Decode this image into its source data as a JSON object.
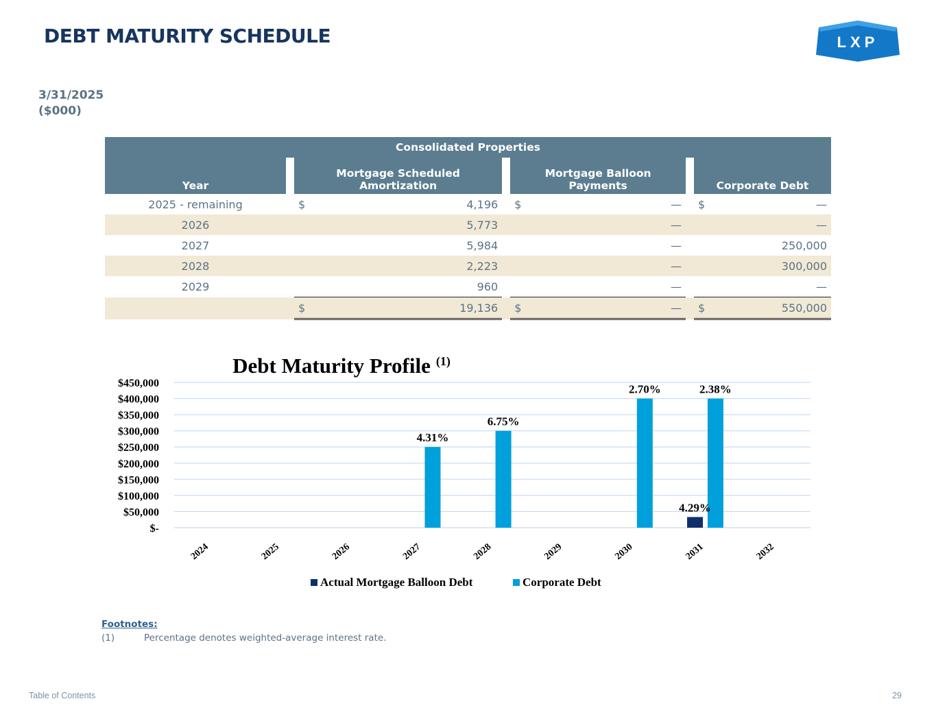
{
  "page": {
    "title": "DEBT MATURITY SCHEDULE",
    "date": "3/31/2025",
    "units": "($000)",
    "logo_text": "LXP",
    "toc_link": "Table of Contents",
    "page_number": "29"
  },
  "table": {
    "group_header": "Consolidated Properties",
    "headers": {
      "year": "Year",
      "amortization": "Mortgage Scheduled Amortization",
      "balloon": "Mortgage Balloon Payments",
      "corporate": "Corporate Debt"
    },
    "rows": [
      {
        "year": "2025 - remaining",
        "amort_cur": "$",
        "amort": "4,196",
        "balloon_cur": "$",
        "balloon": "—",
        "corp_cur": "$",
        "corp": "—"
      },
      {
        "year": "2026",
        "amort_cur": "",
        "amort": "5,773",
        "balloon_cur": "",
        "balloon": "—",
        "corp_cur": "",
        "corp": "—"
      },
      {
        "year": "2027",
        "amort_cur": "",
        "amort": "5,984",
        "balloon_cur": "",
        "balloon": "—",
        "corp_cur": "",
        "corp": "250,000"
      },
      {
        "year": "2028",
        "amort_cur": "",
        "amort": "2,223",
        "balloon_cur": "",
        "balloon": "—",
        "corp_cur": "",
        "corp": "300,000"
      },
      {
        "year": "2029",
        "amort_cur": "",
        "amort": "960",
        "balloon_cur": "",
        "balloon": "—",
        "corp_cur": "",
        "corp": "—"
      }
    ],
    "total": {
      "year": "",
      "amort_cur": "$",
      "amort": "19,136",
      "balloon_cur": "$",
      "balloon": "—",
      "corp_cur": "$",
      "corp": "550,000"
    }
  },
  "chart_data": {
    "type": "bar",
    "title": "Debt Maturity Profile",
    "title_superscript": "(1)",
    "categories": [
      "2024",
      "2025",
      "2026",
      "2027",
      "2028",
      "2029",
      "2030",
      "2031",
      "2032"
    ],
    "series": [
      {
        "name": "Actual Mortgage Balloon Debt",
        "color": "#0e2f6b",
        "values": [
          0,
          0,
          0,
          0,
          0,
          0,
          0,
          33000,
          0
        ],
        "labels": [
          "",
          "",
          "",
          "",
          "",
          "",
          "",
          "4.29%",
          ""
        ]
      },
      {
        "name": "Corporate Debt",
        "color": "#00a0dc",
        "values": [
          0,
          0,
          0,
          250000,
          300000,
          0,
          400000,
          400000,
          0
        ],
        "labels": [
          "",
          "",
          "",
          "4.31%",
          "6.75%",
          "",
          "2.70%",
          "2.38%",
          ""
        ]
      }
    ],
    "ylim": [
      0,
      450000
    ],
    "y_ticks": [
      0,
      50000,
      100000,
      150000,
      200000,
      250000,
      300000,
      350000,
      400000,
      450000
    ],
    "y_tick_labels": [
      "$-",
      "$50,000",
      "$100,000",
      "$150,000",
      "$200,000",
      "$250,000",
      "$300,000",
      "$350,000",
      "$400,000",
      "$450,000"
    ],
    "grid": true,
    "legend_position": "bottom"
  },
  "footnotes": {
    "heading": "Footnotes:",
    "items": [
      {
        "num": "(1)",
        "text": "Percentage denotes weighted-average interest rate."
      }
    ]
  }
}
